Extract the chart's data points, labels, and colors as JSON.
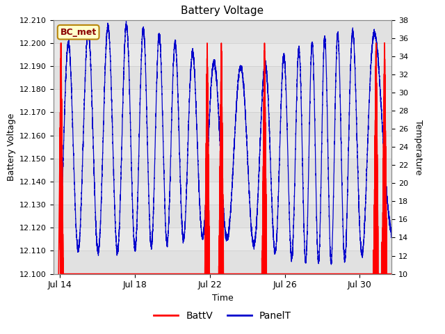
{
  "title": "Battery Voltage",
  "xlabel": "Time",
  "ylabel_left": "Battery Voltage",
  "ylabel_right": "Temperature",
  "ylim_left": [
    12.1,
    12.21
  ],
  "ylim_right": [
    10,
    38
  ],
  "xlim": [
    13.65,
    31.7
  ],
  "xtick_positions": [
    14,
    18,
    22,
    26,
    30
  ],
  "xtick_labels": [
    "Jul 14",
    "Jul 18",
    "Jul 22",
    "Jul 26",
    "Jul 30"
  ],
  "ytick_left": [
    12.1,
    12.11,
    12.12,
    12.13,
    12.14,
    12.15,
    12.16,
    12.17,
    12.18,
    12.19,
    12.2,
    12.21
  ],
  "ytick_right": [
    10,
    12,
    14,
    16,
    18,
    20,
    22,
    24,
    26,
    28,
    30,
    32,
    34,
    36,
    38
  ],
  "grid_color": "#cccccc",
  "bg_color": "#e8e8e8",
  "bg_stripe_light": "#f0f0f0",
  "batt_color": "#ff0000",
  "panel_color": "#0000cc",
  "legend_label_batt": "BattV",
  "legend_label_panel": "PanelT",
  "annotation_text": "BC_met",
  "batt_spikes": [
    14.05,
    21.85,
    22.6,
    24.9,
    30.85,
    31.3
  ],
  "panel_period_days": 1.0,
  "panel_amplitude_high": 36,
  "panel_amplitude_low": 14,
  "font_size_ticks": 8,
  "font_size_labels": 9,
  "font_size_title": 11
}
